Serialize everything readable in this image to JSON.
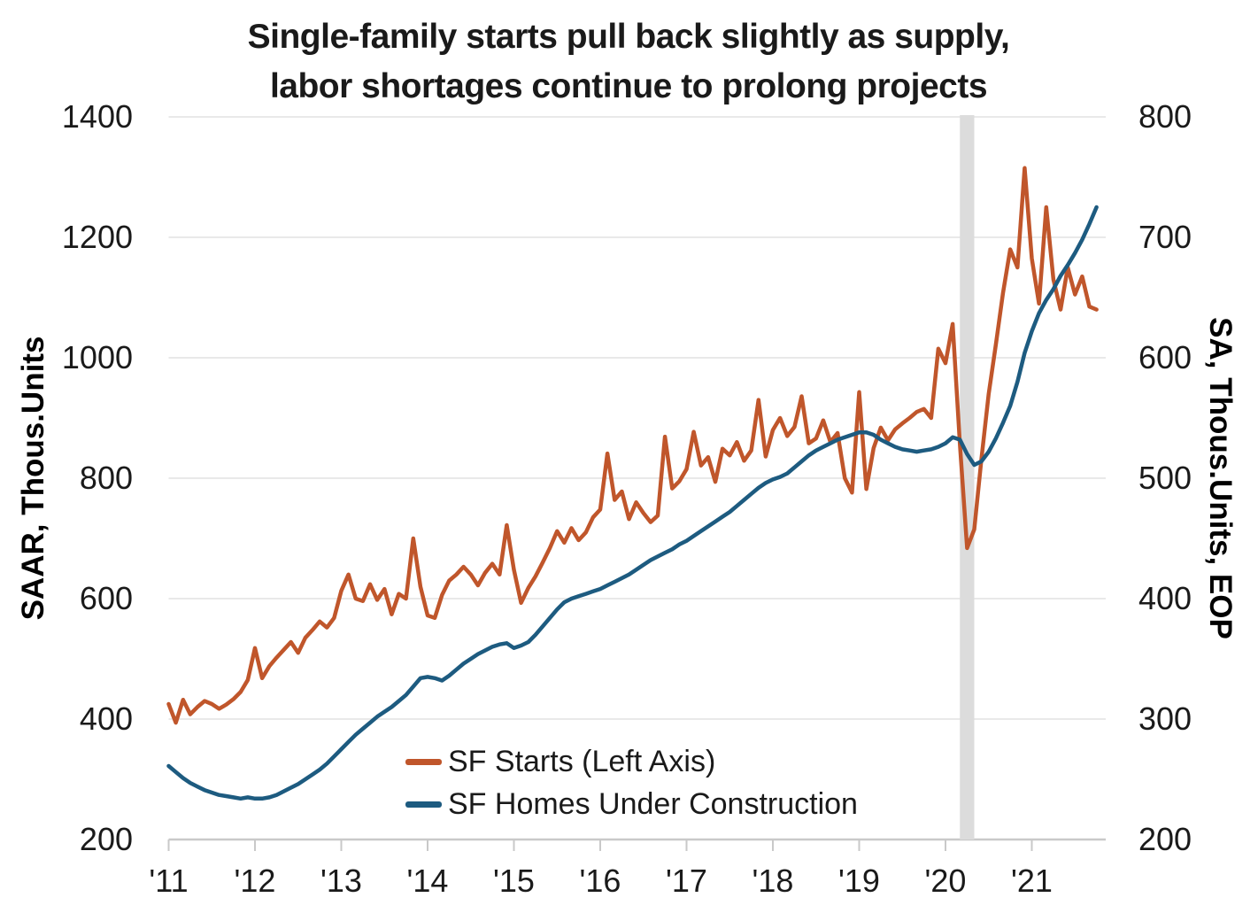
{
  "title": {
    "line1": "Single-family starts pull back slightly as supply,",
    "line2": "labor shortages continue to prolong projects"
  },
  "colors": {
    "sf_starts": "#C0562B",
    "sf_under_construction": "#1D5B80",
    "recession_band": "#DCDCDC",
    "gridline": "#E9E9E9",
    "axis_line": "#C9C9C9",
    "text": "#1a1a1a"
  },
  "chart_data": {
    "type": "line",
    "frequency": "monthly",
    "x_start": "2011-01",
    "x_end": "2021-10",
    "x_tick_labels": [
      "'11",
      "'12",
      "'13",
      "'14",
      "'15",
      "'16",
      "'17",
      "'18",
      "'19",
      "'20",
      "'21"
    ],
    "left_axis": {
      "label": "SAAR, Thous.Units",
      "min": 200,
      "max": 1400,
      "tick_step": 200,
      "ticks": [
        1400,
        1200,
        1000,
        800,
        600,
        400,
        200
      ]
    },
    "right_axis": {
      "label": "SA, Thous.Units, EOP",
      "min": 200,
      "max": 800,
      "tick_step": 100,
      "ticks": [
        800,
        700,
        600,
        500,
        400,
        300,
        200
      ]
    },
    "grid": "horizontal-only",
    "legend_position": "inside-bottom-center",
    "recession_band": {
      "from": "2020-03",
      "to": "2020-05"
    },
    "series": [
      {
        "name": "SF Starts (Left Axis)",
        "axis": "left",
        "color": "#C0562B",
        "values": [
          425,
          394,
          432,
          408,
          420,
          430,
          425,
          417,
          424,
          433,
          445,
          465,
          518,
          468,
          488,
          502,
          515,
          528,
          510,
          535,
          548,
          562,
          552,
          568,
          613,
          640,
          600,
          596,
          624,
          598,
          616,
          574,
          608,
          600,
          700,
          620,
          572,
          568,
          606,
          630,
          640,
          653,
          640,
          622,
          643,
          658,
          640,
          722,
          648,
          593,
          618,
          637,
          660,
          684,
          712,
          693,
          717,
          697,
          710,
          735,
          748,
          841,
          764,
          778,
          732,
          760,
          742,
          727,
          738,
          869,
          783,
          795,
          815,
          877,
          821,
          835,
          794,
          849,
          838,
          860,
          829,
          846,
          930,
          836,
          880,
          900,
          870,
          885,
          936,
          858,
          866,
          896,
          860,
          875,
          800,
          776,
          943,
          782,
          850,
          884,
          863,
          881,
          891,
          900,
          910,
          915,
          900,
          1015,
          991,
          1056,
          856,
          684,
          715,
          832,
          940,
          1022,
          1108,
          1180,
          1150,
          1315,
          1165,
          1090,
          1250,
          1130,
          1080,
          1150,
          1105,
          1135,
          1085,
          1080
        ]
      },
      {
        "name": "SF Homes Under Construction",
        "axis": "right",
        "color": "#1D5B80",
        "values": [
          261,
          256,
          251,
          247,
          244,
          241,
          239,
          237,
          236,
          235,
          234,
          235,
          234,
          234,
          235,
          237,
          240,
          243,
          246,
          250,
          254,
          258,
          263,
          269,
          275,
          281,
          287,
          292,
          297,
          302,
          306,
          310,
          315,
          320,
          327,
          334,
          335,
          334,
          332,
          336,
          341,
          346,
          350,
          354,
          357,
          360,
          362,
          363,
          359,
          361,
          364,
          370,
          377,
          384,
          391,
          397,
          400,
          402,
          404,
          406,
          408,
          411,
          414,
          417,
          420,
          424,
          428,
          432,
          435,
          438,
          441,
          445,
          448,
          452,
          456,
          460,
          464,
          468,
          472,
          477,
          482,
          487,
          492,
          496,
          499,
          501,
          504,
          509,
          514,
          519,
          523,
          526,
          529,
          532,
          534,
          536,
          538,
          538,
          536,
          532,
          529,
          526,
          524,
          523,
          522,
          523,
          524,
          526,
          529,
          534,
          532,
          520,
          511,
          514,
          522,
          533,
          546,
          560,
          580,
          604,
          622,
          637,
          648,
          657,
          668,
          677,
          687,
          698,
          711,
          725
        ]
      }
    ]
  },
  "legend": {
    "items": [
      {
        "label": "SF Starts (Left Axis)",
        "color": "#C0562B"
      },
      {
        "label": "SF Homes Under Construction",
        "color": "#1D5B80"
      }
    ]
  }
}
